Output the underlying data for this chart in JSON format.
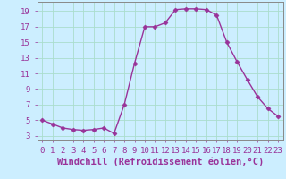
{
  "x": [
    0,
    1,
    2,
    3,
    4,
    5,
    6,
    7,
    8,
    9,
    10,
    11,
    12,
    13,
    14,
    15,
    16,
    17,
    18,
    19,
    20,
    21,
    22,
    23
  ],
  "y": [
    5.0,
    4.5,
    4.0,
    3.8,
    3.7,
    3.8,
    4.0,
    3.3,
    7.0,
    12.3,
    17.0,
    17.0,
    17.5,
    19.2,
    19.3,
    19.3,
    19.2,
    18.5,
    15.0,
    12.5,
    10.2,
    8.0,
    6.5,
    5.5
  ],
  "line_color": "#993399",
  "marker": "D",
  "marker_size": 2.5,
  "bg_color": "#cceeff",
  "grid_color": "#aaddcc",
  "xlabel": "Windchill (Refroidissement éolien,°C)",
  "xlim": [
    -0.5,
    23.5
  ],
  "ylim": [
    2.5,
    20.2
  ],
  "yticks": [
    3,
    5,
    7,
    9,
    11,
    13,
    15,
    17,
    19
  ],
  "xticks": [
    0,
    1,
    2,
    3,
    4,
    5,
    6,
    7,
    8,
    9,
    10,
    11,
    12,
    13,
    14,
    15,
    16,
    17,
    18,
    19,
    20,
    21,
    22,
    23
  ],
  "tick_color": "#993399",
  "label_fontsize": 6.5,
  "axis_fontsize": 7.5
}
